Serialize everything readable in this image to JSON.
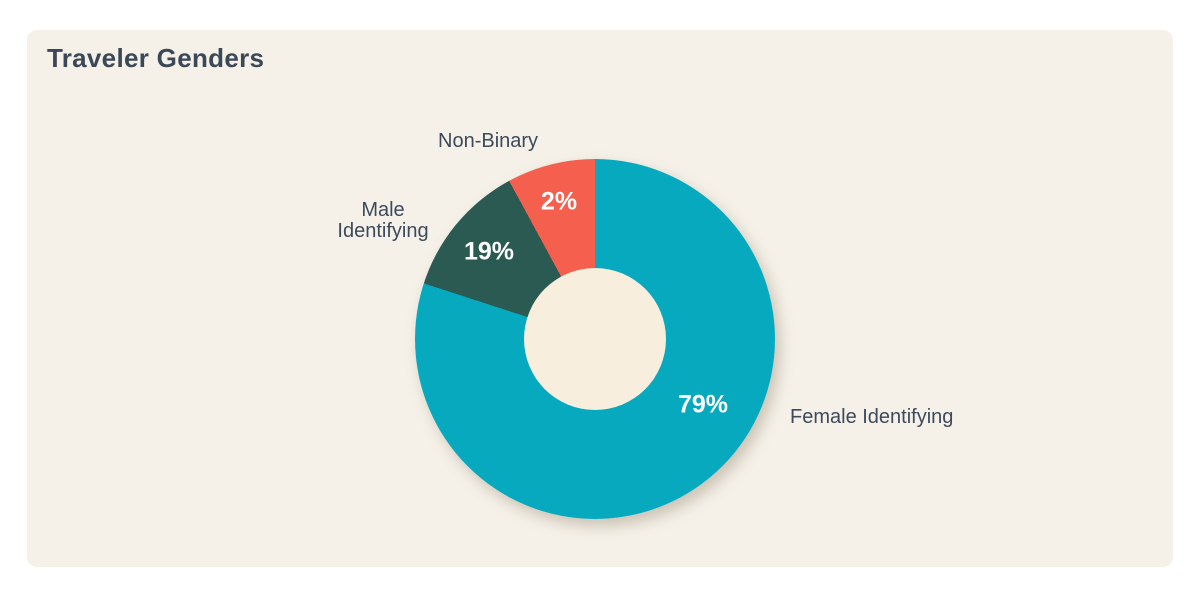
{
  "theme": {
    "page_bg": "#FFFFFF",
    "card_bg": "#F5F1E8",
    "title_color": "#3A4857",
    "label_color": "#3C4A5C",
    "value_text_color": "#FFFFFF"
  },
  "chart_data": {
    "type": "pie",
    "variant": "donut",
    "title": "Traveler Genders",
    "categories": [
      "Female Identifying",
      "Male Identifying",
      "Non-Binary"
    ],
    "values": [
      79,
      19,
      2
    ],
    "unit": "%",
    "value_labels": [
      "79%",
      "19%",
      "2%"
    ],
    "series_colors": [
      "#07A9BF",
      "#2B5A53",
      "#F4604D"
    ],
    "male_label_lines": [
      "Male",
      "Identifying"
    ],
    "hole_color": "#F8EEDD",
    "hole_diameter_ratio": 0.39,
    "rotation": "first segment starts at 12 o'clock, clockwise",
    "display_segment_angles_deg": [
      [
        0,
        288
      ],
      [
        288,
        331.5
      ],
      [
        331.5,
        360
      ]
    ],
    "legend_position": "labels placed around chart, values inside segments",
    "grid": false
  }
}
